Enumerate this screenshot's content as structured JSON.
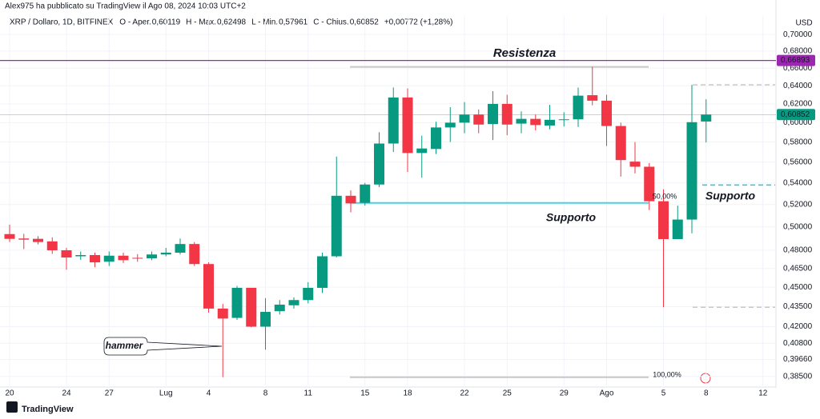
{
  "header": {
    "publisher": "Alex975 ha pubblicato su TradingView il Ago 08, 2024 10:03 UTC+2",
    "symbol": "XRP / Dollaro, 1D, BITFINEX",
    "ohlc": [
      {
        "label": "O - Aper.",
        "value": "0,60119"
      },
      {
        "label": "H - Max.",
        "value": "0,62498"
      },
      {
        "label": "L - Min.",
        "value": "0,57961"
      },
      {
        "label": "C - Chius.",
        "value": "0,60852"
      }
    ],
    "change": "+0,00772 (+1,28%)"
  },
  "footer": {
    "brand": "TradingView"
  },
  "chart_data": {
    "type": "candlestick",
    "currency": "USD",
    "log_scale": true,
    "grid": true,
    "up_color": "#089981",
    "down_color": "#f23645",
    "categories": [
      "20",
      null,
      null,
      null,
      "24",
      null,
      null,
      "27",
      null,
      null,
      null,
      "Lug",
      null,
      null,
      "4",
      null,
      null,
      null,
      "8",
      null,
      null,
      "11",
      null,
      null,
      null,
      "15",
      null,
      null,
      "18",
      null,
      null,
      null,
      "22",
      null,
      null,
      "25",
      null,
      null,
      null,
      "29",
      null,
      null,
      "Ago",
      null,
      null,
      null,
      "5",
      null,
      null,
      "8",
      null,
      null,
      null,
      "12"
    ],
    "open": [
      0.4938,
      0.49,
      0.4897,
      0.4875,
      0.48,
      0.475,
      0.476,
      0.4705,
      0.4755,
      0.4737,
      0.4733,
      0.4765,
      0.478,
      0.4853,
      0.4686,
      0.4335,
      0.4265,
      0.4495,
      0.42,
      0.4315,
      0.436,
      0.44,
      0.4495,
      0.475,
      0.528,
      0.5215,
      0.5385,
      0.5785,
      0.627,
      0.569,
      0.573,
      0.595,
      0.6,
      0.6085,
      0.5985,
      0.62,
      0.599,
      0.604,
      0.597,
      0.603,
      0.6035,
      0.6295,
      0.6235,
      0.5965,
      0.5605,
      0.5555,
      0.523,
      0.4895,
      0.5065,
      0.60119,
      null,
      null,
      null,
      null
    ],
    "high": [
      0.502,
      0.494,
      0.492,
      0.491,
      0.482,
      0.479,
      0.478,
      0.479,
      0.478,
      0.4768,
      0.479,
      0.482,
      0.49,
      0.487,
      0.47,
      0.437,
      0.451,
      0.4495,
      0.4415,
      0.44,
      0.442,
      0.454,
      0.478,
      0.5655,
      0.533,
      0.54,
      0.59,
      0.638,
      0.637,
      0.5865,
      0.601,
      0.6165,
      0.622,
      0.614,
      0.634,
      0.63,
      0.612,
      0.6085,
      0.619,
      0.611,
      0.638,
      0.6615,
      0.63,
      0.6,
      0.58,
      0.559,
      0.534,
      0.519,
      0.641,
      0.62498,
      null,
      null,
      null,
      null
    ],
    "low": [
      0.487,
      0.481,
      0.485,
      0.477,
      0.464,
      0.472,
      0.466,
      0.467,
      0.4695,
      0.4705,
      0.4718,
      0.475,
      0.4765,
      0.467,
      0.4305,
      0.3845,
      0.425,
      0.4195,
      0.4035,
      0.429,
      0.4335,
      0.4375,
      0.4455,
      0.474,
      0.513,
      0.519,
      0.536,
      0.57,
      0.5505,
      0.545,
      0.568,
      0.58,
      0.589,
      0.589,
      0.582,
      0.587,
      0.589,
      0.592,
      0.593,
      0.596,
      0.5955,
      0.6185,
      0.576,
      0.546,
      0.549,
      0.515,
      0.4345,
      0.4895,
      0.4945,
      0.57961,
      null,
      null,
      null,
      null
    ],
    "close": [
      0.4897,
      0.489,
      0.487,
      0.48,
      0.474,
      0.476,
      0.47,
      0.4755,
      0.4718,
      0.4735,
      0.4765,
      0.478,
      0.4853,
      0.4686,
      0.4335,
      0.426,
      0.4495,
      0.42,
      0.431,
      0.4365,
      0.44,
      0.4495,
      0.475,
      0.528,
      0.521,
      0.5385,
      0.5785,
      0.627,
      0.569,
      0.5735,
      0.595,
      0.6,
      0.6085,
      0.598,
      0.62,
      0.598,
      0.604,
      0.5975,
      0.603,
      0.6035,
      0.629,
      0.6235,
      0.5965,
      0.562,
      0.5555,
      0.523,
      0.4895,
      0.5065,
      0.6005,
      0.60852,
      null,
      null,
      null,
      null
    ],
    "ylim": [
      0.379,
      0.723
    ],
    "yticks": [
      {
        "value": 0.7,
        "label": "0,70000"
      },
      {
        "value": 0.68,
        "label": "0,68000"
      },
      {
        "value": 0.66,
        "label": "0,66000"
      },
      {
        "value": 0.64,
        "label": "0,64000"
      },
      {
        "value": 0.62,
        "label": "0,62000"
      },
      {
        "value": 0.6,
        "label": "0,60000"
      },
      {
        "value": 0.58,
        "label": "0,58000"
      },
      {
        "value": 0.56,
        "label": "0,56000"
      },
      {
        "value": 0.54,
        "label": "0,54000"
      },
      {
        "value": 0.52,
        "label": "0,52000"
      },
      {
        "value": 0.5,
        "label": "0,50000"
      },
      {
        "value": 0.48,
        "label": "0,48000"
      },
      {
        "value": 0.465,
        "label": "0,46500"
      },
      {
        "value": 0.45,
        "label": "0,45000"
      },
      {
        "value": 0.435,
        "label": "0,43500"
      },
      {
        "value": 0.42,
        "label": "0,42000"
      },
      {
        "value": 0.408,
        "label": "0,40800"
      },
      {
        "value": 0.3966,
        "label": "0,39660"
      },
      {
        "value": 0.385,
        "label": "0,38500"
      }
    ],
    "price_lines": [
      {
        "value": 0.66893,
        "label": "0,66893",
        "color": "#9c27b0"
      },
      {
        "value": 0.60852,
        "label": "0,60852",
        "color": "#089981"
      }
    ],
    "levels": [
      {
        "value": 0.5215,
        "color": "#4dd0e1",
        "style": "solid"
      },
      {
        "value": 0.538,
        "color": "#26c6da",
        "style": "dashed"
      },
      {
        "value": 0.6615,
        "color": "#c8c8c8",
        "style": "solid"
      },
      {
        "value": 0.3845,
        "color": "#c8c8c8",
        "style": "solid"
      },
      {
        "value": 0.641,
        "color": "#c8c8c8",
        "style": "dashed"
      },
      {
        "value": 0.4345,
        "color": "#c8c8c8",
        "style": "dashed"
      }
    ],
    "annotations": [
      {
        "text": "Resistenza",
        "color": "#9c27b0"
      },
      {
        "text": "Supporto",
        "color": "#26c6da"
      },
      {
        "text": "Supporto",
        "color": "#26c6da"
      },
      {
        "text": "hammer",
        "color": "#131722"
      },
      {
        "text": "50,00%",
        "color": "#80deea"
      },
      {
        "text": "100,00%",
        "color": "#c0c0c0"
      }
    ]
  }
}
